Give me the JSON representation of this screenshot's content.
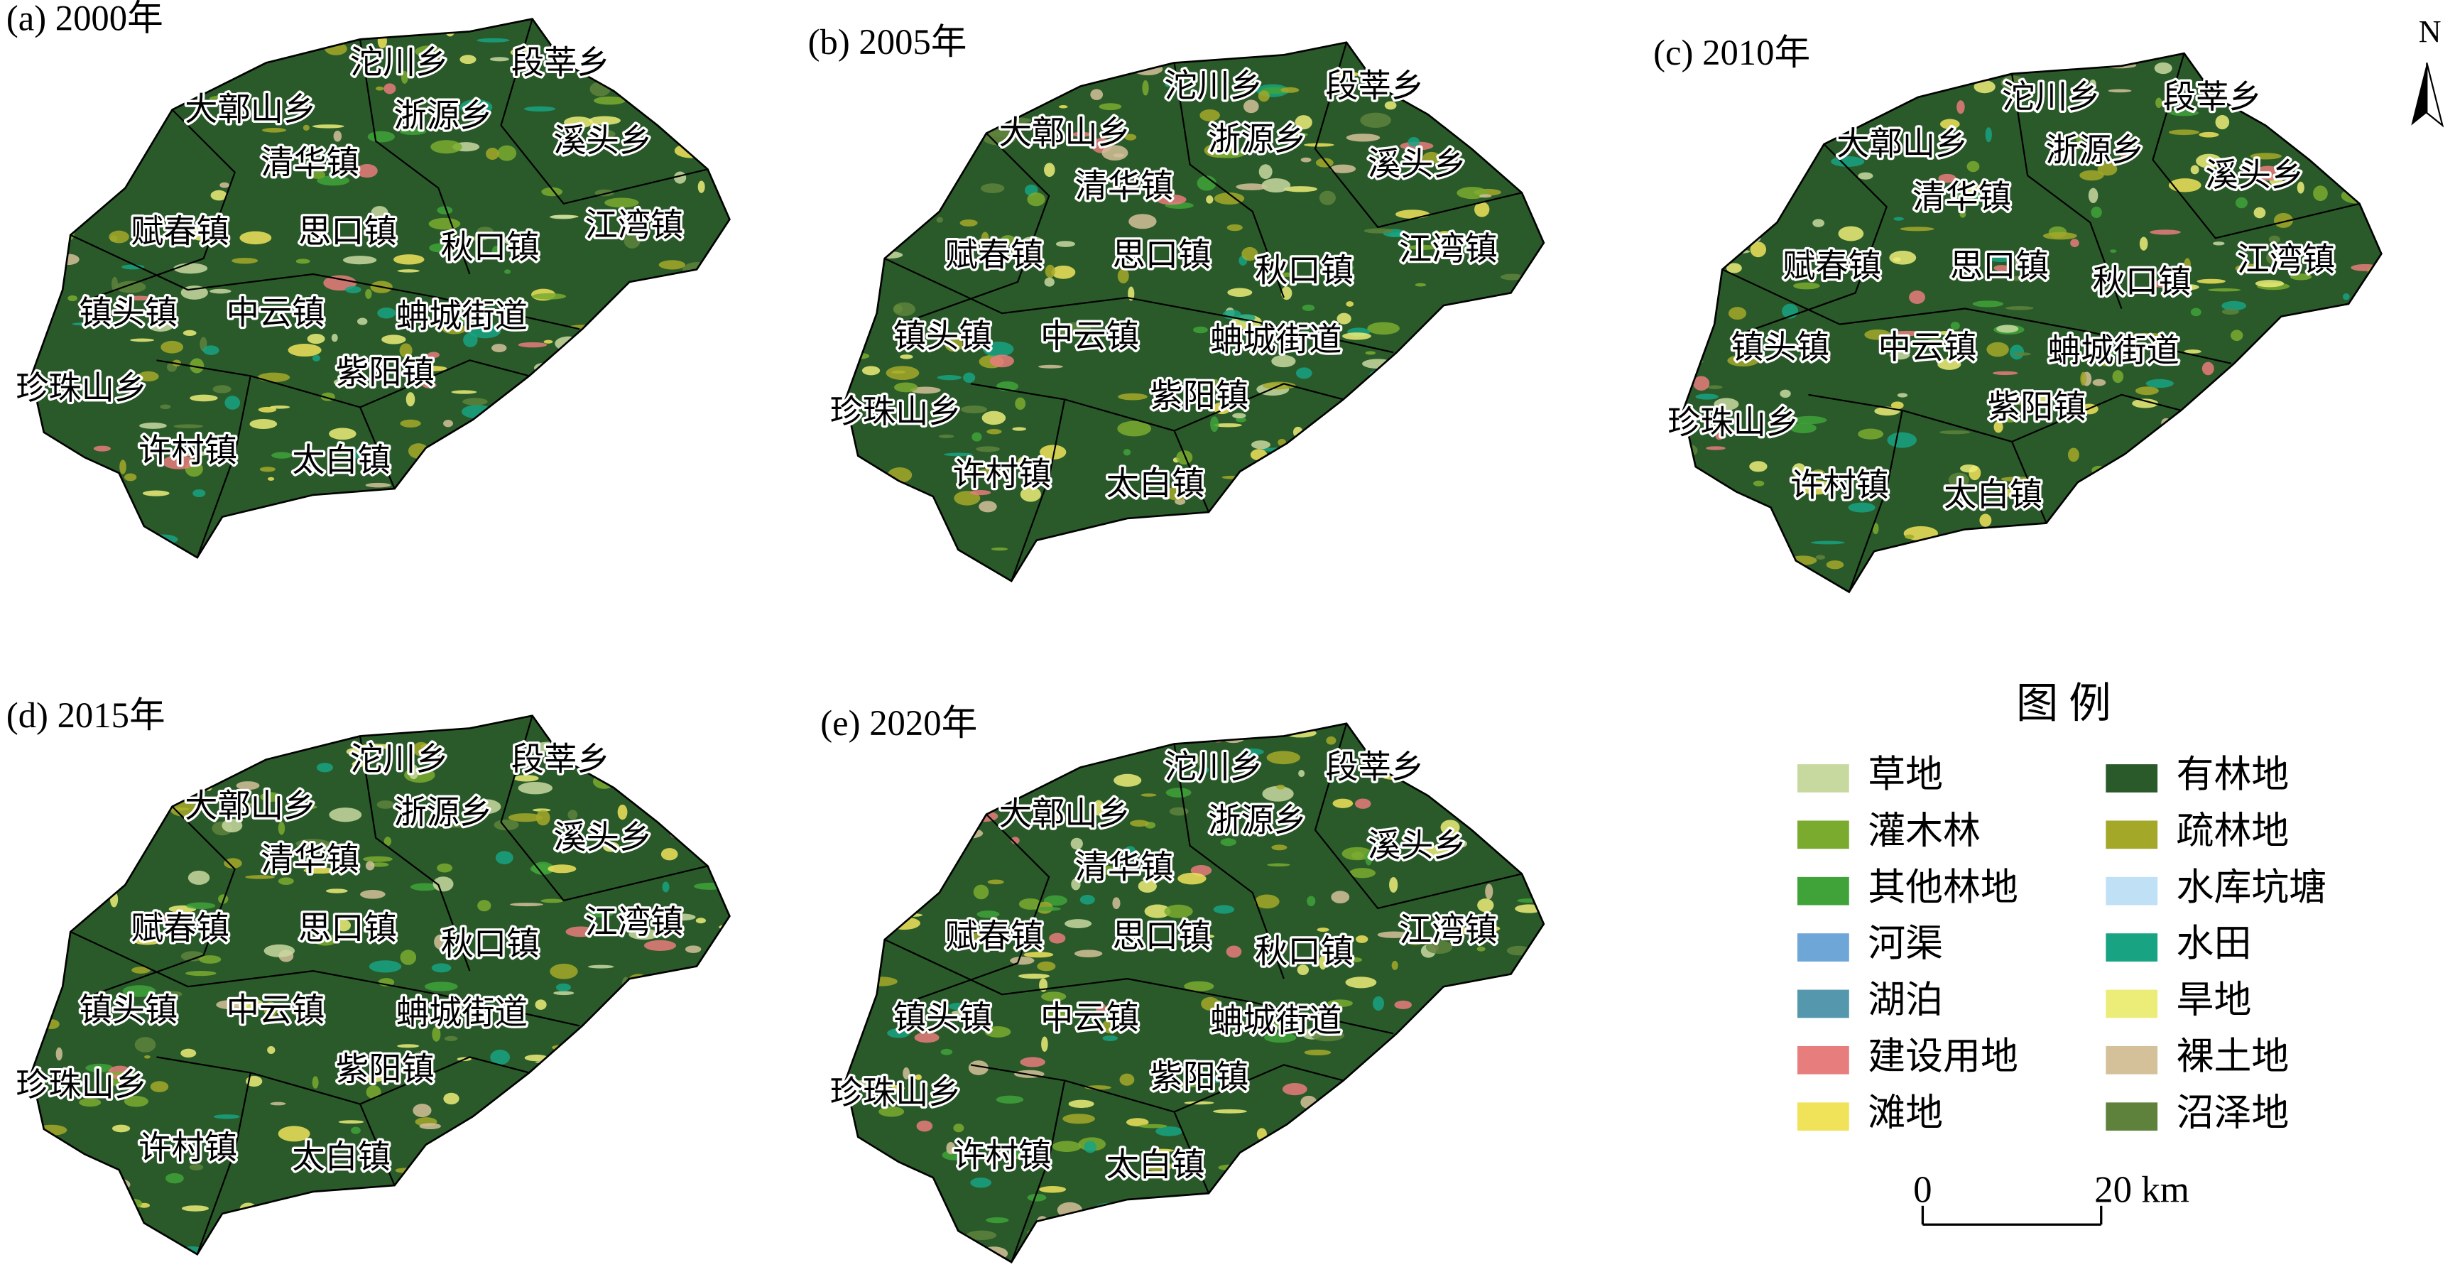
{
  "panels": [
    {
      "title": "(a) 2000年",
      "towns": [
        "沱川乡",
        "段莘乡",
        "大鄣山乡",
        "浙源乡",
        "溪头乡",
        "清华镇",
        "江湾镇",
        "赋春镇",
        "思口镇",
        "秋口镇",
        "镇头镇",
        "中云镇",
        "蚺城街道",
        "紫阳镇",
        "珍珠山乡",
        "许村镇",
        "太白镇"
      ]
    },
    {
      "title": "(b) 2005年",
      "towns": [
        "沱川乡",
        "段莘乡",
        "大鄣山乡",
        "浙源乡",
        "溪头乡",
        "清华镇",
        "江湾镇",
        "赋春镇",
        "思口镇",
        "秋口镇",
        "镇头镇",
        "中云镇",
        "蚺城街道",
        "紫阳镇",
        "珍珠山乡",
        "许村镇",
        "太白镇"
      ]
    },
    {
      "title": "(c) 2010年",
      "towns": [
        "沱川乡",
        "段莘乡",
        "大鄣山乡",
        "浙源乡",
        "溪头乡",
        "清华镇",
        "江湾镇",
        "赋春镇",
        "思口镇",
        "秋口镇",
        "镇头镇",
        "中云镇",
        "蚺城街道",
        "紫阳镇",
        "珍珠山乡",
        "许村镇",
        "太白镇"
      ]
    },
    {
      "title": "(d) 2015年",
      "towns": [
        "沱川乡",
        "段莘乡",
        "大鄣山乡",
        "浙源乡",
        "溪头乡",
        "清华镇",
        "江湾镇",
        "赋春镇",
        "思口镇",
        "秋口镇",
        "镇头镇",
        "中云镇",
        "蚺城街道",
        "紫阳镇",
        "珍珠山乡",
        "许村镇",
        "太白镇"
      ]
    },
    {
      "title": "(e) 2020年",
      "towns": [
        "沱川乡",
        "段莘乡",
        "大鄣山乡",
        "浙源乡",
        "溪头乡",
        "清华镇",
        "江湾镇",
        "赋春镇",
        "思口镇",
        "秋口镇",
        "镇头镇",
        "中云镇",
        "蚺城街道",
        "紫阳镇",
        "珍珠山乡",
        "许村镇",
        "太白镇"
      ]
    }
  ],
  "legend": {
    "title": "图  例",
    "items": [
      {
        "name": "草地",
        "color": "#c8d9a0"
      },
      {
        "name": "灌木林",
        "color": "#7aab2f"
      },
      {
        "name": "其他林地",
        "color": "#3fa33a"
      },
      {
        "name": "河渠",
        "color": "#6fa6d8"
      },
      {
        "name": "湖泊",
        "color": "#5597ad"
      },
      {
        "name": "建设用地",
        "color": "#e87d7d"
      },
      {
        "name": "滩地",
        "color": "#f0e35a"
      },
      {
        "name": "有林地",
        "color": "#2a5a2a"
      },
      {
        "name": "疏林地",
        "color": "#a3a829"
      },
      {
        "name": "水库坑塘",
        "color": "#bfe0f5"
      },
      {
        "name": "水田",
        "color": "#18a383"
      },
      {
        "name": "旱地",
        "color": "#ecec78"
      },
      {
        "name": "裸土地",
        "color": "#d4c19a"
      },
      {
        "name": "沼泽地",
        "color": "#5e823c"
      }
    ]
  },
  "scale_bar": {
    "start": "0",
    "end": "20 km"
  },
  "north": "N"
}
